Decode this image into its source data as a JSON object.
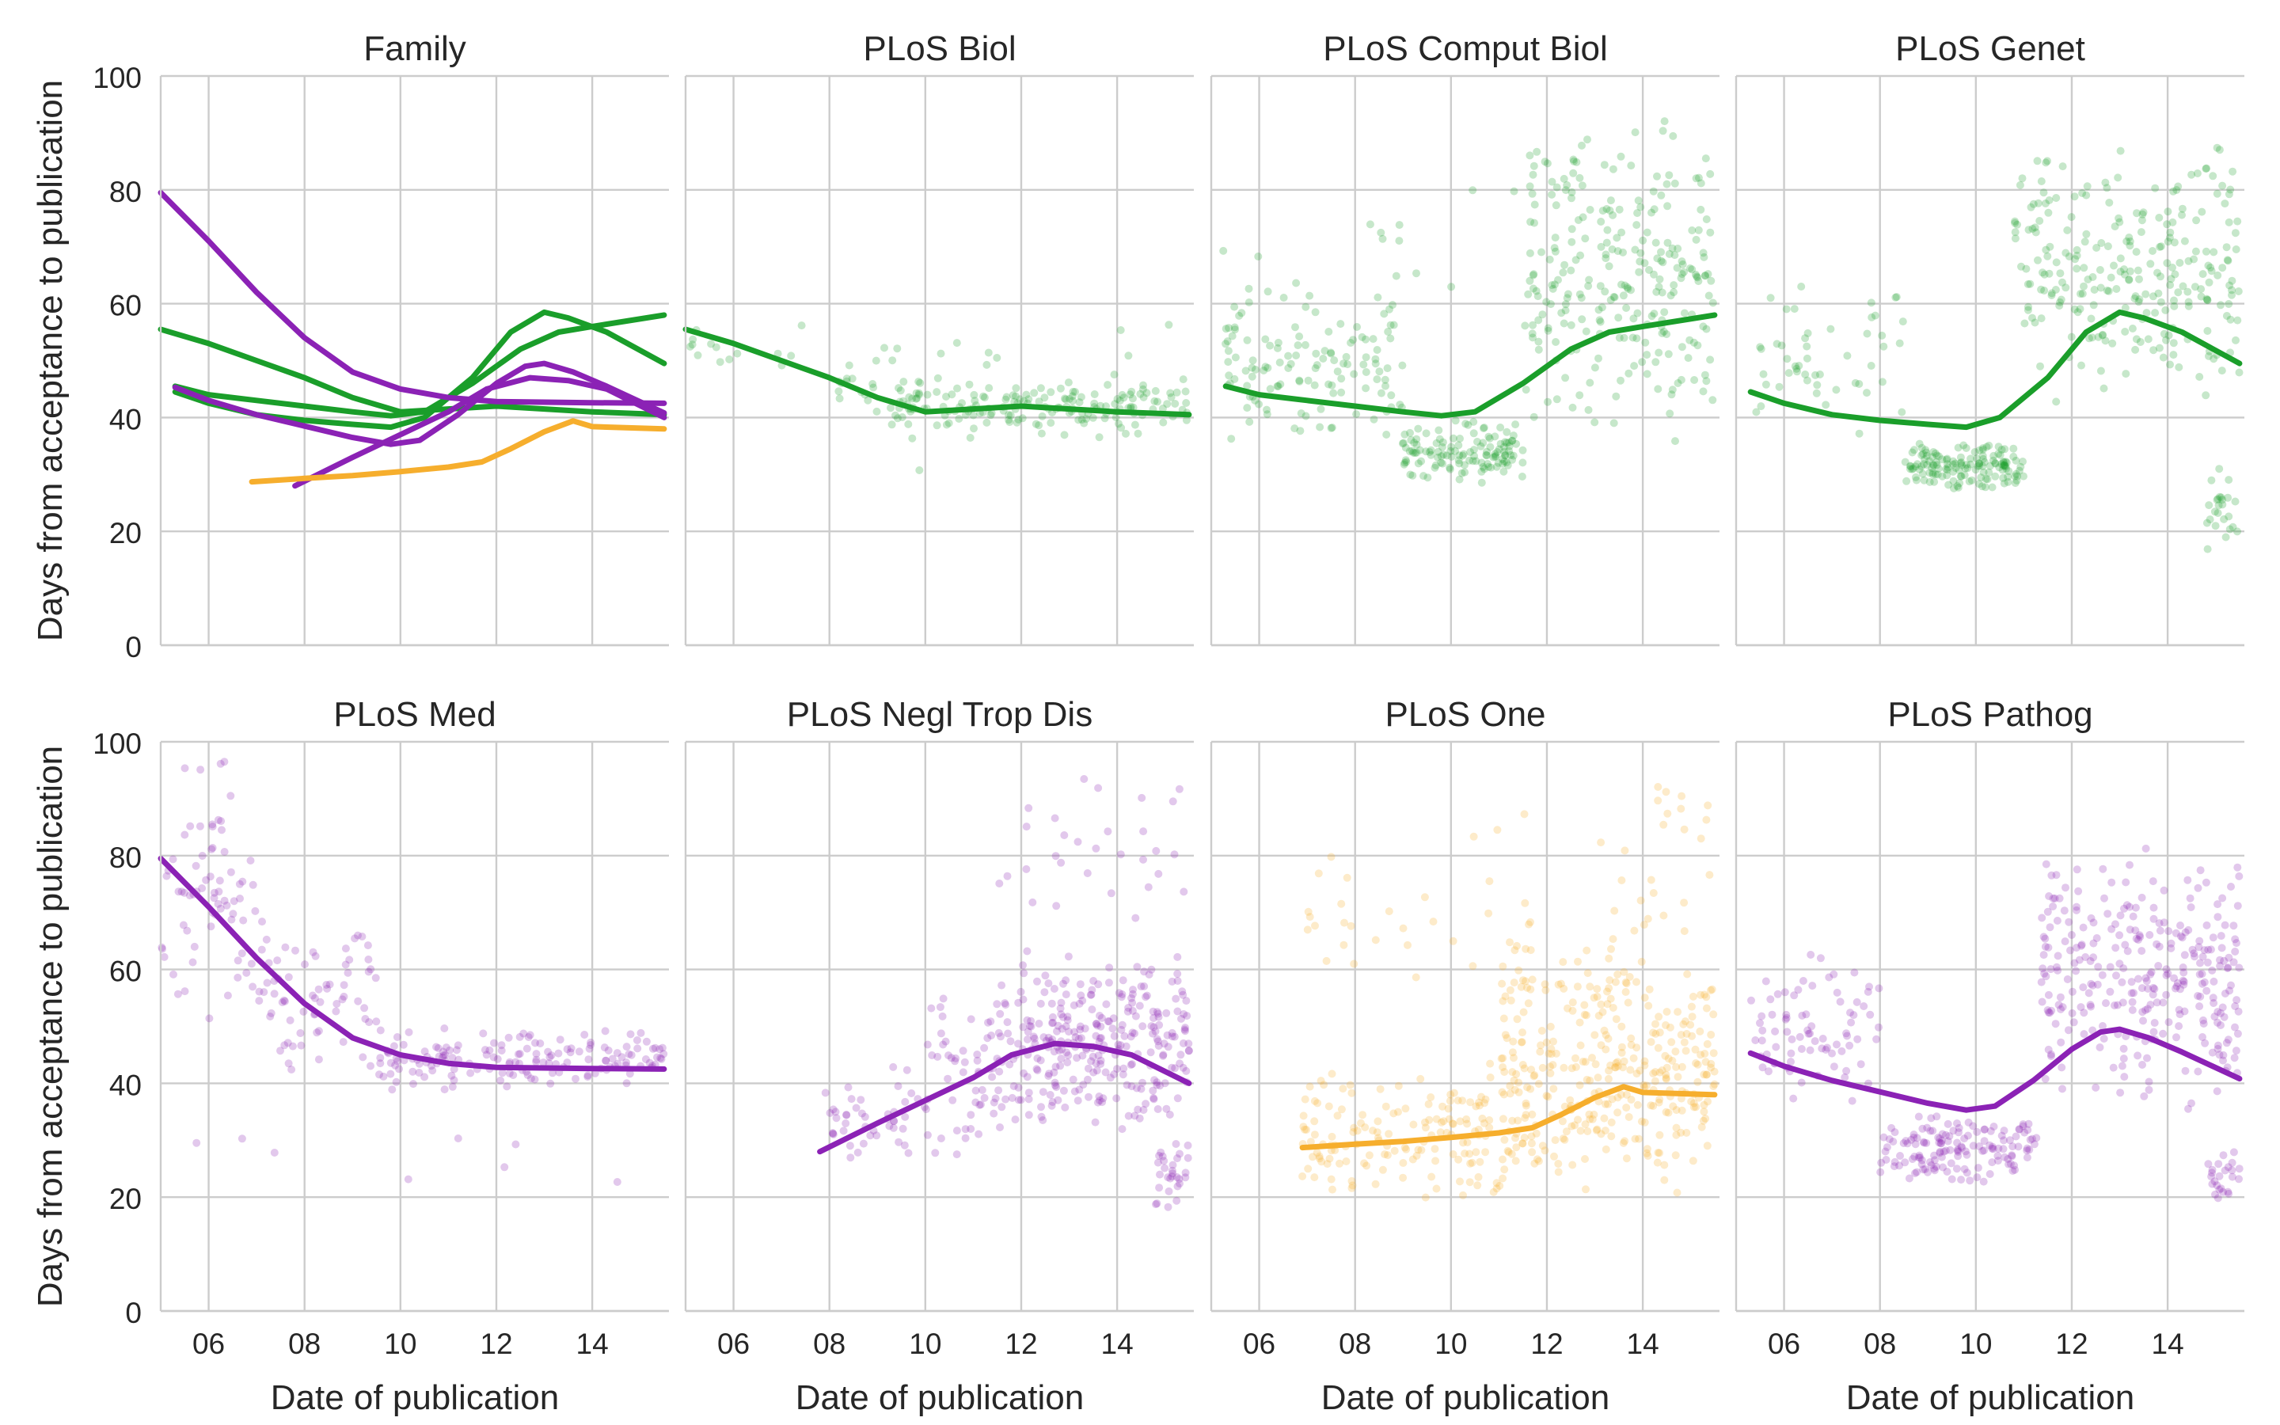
{
  "figure": {
    "shared_ylabel": "Days from acceptance to publication",
    "shared_xlabel": "Date of publication",
    "x_ticks": [
      "06",
      "08",
      "10",
      "12",
      "14"
    ],
    "y_ticks": [
      "0",
      "20",
      "40",
      "60",
      "80",
      "100"
    ],
    "colors": {
      "green": "#1a9e2a",
      "purple": "#8b22b5",
      "orange": "#f6ae2d",
      "grid": "#cccccc"
    }
  },
  "chart_data": [
    {
      "type": "line",
      "title": "Family",
      "xlabel": "",
      "ylabel": "Days from acceptance to publication",
      "xlim": [
        2005.0,
        2015.6
      ],
      "ylim": [
        0,
        100
      ],
      "series": [
        {
          "name": "PLoS Biol",
          "color": "green",
          "x": [
            2005.0,
            2006,
            2007,
            2008,
            2009,
            2010,
            2011,
            2012,
            2013,
            2014,
            2015.5
          ],
          "values": [
            55.5,
            53,
            50,
            47,
            43.5,
            41,
            41.5,
            42,
            41.5,
            41,
            40.5
          ]
        },
        {
          "name": "PLoS Comput Biol",
          "color": "green",
          "x": [
            2005.3,
            2006,
            2007,
            2008,
            2009,
            2009.8,
            2010.5,
            2011.5,
            2012.5,
            2013.3,
            2014,
            2015.5
          ],
          "values": [
            45.5,
            44,
            43,
            42,
            41,
            40.3,
            41,
            46,
            52,
            55,
            56,
            58
          ]
        },
        {
          "name": "PLoS Genet",
          "color": "green",
          "x": [
            2005.3,
            2006,
            2007,
            2008,
            2009,
            2009.8,
            2010.5,
            2011.5,
            2012.3,
            2013,
            2013.5,
            2014.3,
            2015.5
          ],
          "values": [
            44.5,
            42.5,
            40.5,
            39.5,
            38.8,
            38.3,
            40,
            47,
            55,
            58.5,
            57.5,
            55,
            49.5
          ]
        },
        {
          "name": "PLoS Med",
          "color": "purple",
          "x": [
            2005.0,
            2006,
            2007,
            2008,
            2009,
            2010,
            2011,
            2012,
            2013,
            2014,
            2015.5
          ],
          "values": [
            79.5,
            71,
            62,
            54,
            48,
            45,
            43.5,
            42.8,
            42.7,
            42.6,
            42.5
          ]
        },
        {
          "name": "PLoS Negl Trop Dis",
          "color": "purple",
          "x": [
            2007.8,
            2009,
            2010,
            2011,
            2011.8,
            2012.7,
            2013.5,
            2014.3,
            2015.5
          ],
          "values": [
            28,
            33,
            37,
            41,
            45,
            47,
            46.5,
            45,
            40
          ]
        },
        {
          "name": "PLoS Pathog",
          "color": "purple",
          "x": [
            2005.3,
            2006,
            2007,
            2008,
            2009,
            2009.8,
            2010.4,
            2011.2,
            2012,
            2012.6,
            2013,
            2013.6,
            2014.3,
            2015.5
          ],
          "values": [
            45.3,
            43,
            40.5,
            38.5,
            36.5,
            35.3,
            36,
            40.5,
            46,
            49,
            49.5,
            48,
            45.5,
            40.8
          ]
        },
        {
          "name": "PLoS One",
          "color": "orange",
          "x": [
            2006.9,
            2008,
            2009,
            2010,
            2011,
            2011.7,
            2012.3,
            2013,
            2013.6,
            2014,
            2015.5
          ],
          "values": [
            28.7,
            29.3,
            29.8,
            30.5,
            31.3,
            32.2,
            34.5,
            37.5,
            39.4,
            38.4,
            38
          ]
        }
      ]
    },
    {
      "type": "scatter",
      "title": "PLoS Biol",
      "xlabel": "",
      "ylabel": "",
      "xlim": [
        2005.0,
        2015.6
      ],
      "ylim": [
        0,
        100
      ],
      "color": "green",
      "seed": 11,
      "clusters": [
        [
          2005.0,
          2008.0,
          46,
          58,
          14
        ],
        [
          2008.0,
          2009.3,
          40,
          52,
          16
        ],
        [
          2009.3,
          2015.5,
          36,
          47,
          170
        ],
        [
          2009.0,
          2015.5,
          26,
          62,
          24
        ]
      ],
      "trend": {
        "x": [
          2005.0,
          2006,
          2007,
          2008,
          2009,
          2010,
          2011,
          2012,
          2013,
          2014,
          2015.5
        ],
        "values": [
          55.5,
          53,
          50,
          47,
          43.5,
          41,
          41.5,
          42,
          41.5,
          41,
          40.5
        ]
      }
    },
    {
      "type": "scatter",
      "title": "PLoS Comput Biol",
      "xlabel": "",
      "ylabel": "",
      "xlim": [
        2005.0,
        2015.6
      ],
      "ylim": [
        0,
        100
      ],
      "color": "green",
      "seed": 23,
      "clusters": [
        [
          2005.2,
          2009.0,
          34,
          66,
          130
        ],
        [
          2009.0,
          2011.5,
          28,
          40,
          130
        ],
        [
          2011.5,
          2015.5,
          35,
          95,
          260
        ],
        [
          2005.2,
          2011.5,
          55,
          82,
          12
        ]
      ],
      "trend": {
        "x": [
          2005.3,
          2006,
          2007,
          2008,
          2009,
          2009.8,
          2010.5,
          2011.5,
          2012.5,
          2013.3,
          2014,
          2015.5
        ],
        "values": [
          45.5,
          44,
          43,
          42,
          41,
          40.3,
          41,
          46,
          52,
          55,
          56,
          58
        ]
      }
    },
    {
      "type": "scatter",
      "title": "PLoS Genet",
      "xlabel": "",
      "ylabel": "",
      "xlim": [
        2005.0,
        2015.6
      ],
      "ylim": [
        0,
        100
      ],
      "color": "green",
      "seed": 37,
      "clusters": [
        [
          2005.3,
          2008.5,
          36,
          66,
          50
        ],
        [
          2008.5,
          2011.0,
          27,
          36,
          150
        ],
        [
          2010.8,
          2015.5,
          42,
          90,
          260
        ],
        [
          2014.8,
          2015.5,
          16,
          35,
          25
        ]
      ],
      "trend": {
        "x": [
          2005.3,
          2006,
          2007,
          2008,
          2009,
          2009.8,
          2010.5,
          2011.5,
          2012.3,
          2013,
          2013.5,
          2014.3,
          2015.5
        ],
        "values": [
          44.5,
          42.5,
          40.5,
          39.5,
          38.8,
          38.3,
          40,
          47,
          55,
          58.5,
          57.5,
          55,
          49.5
        ]
      }
    },
    {
      "type": "scatter",
      "title": "PLoS Med",
      "xlabel": "Date of publication",
      "ylabel": "Days from acceptance to publication",
      "xlim": [
        2005.0,
        2015.6
      ],
      "ylim": [
        0,
        100
      ],
      "color": "purple",
      "seed": 41,
      "clusters": [
        [
          2005.0,
          2007.0,
          50,
          98,
          70
        ],
        [
          2007.0,
          2009.5,
          40,
          72,
          70
        ],
        [
          2009.5,
          2015.5,
          38,
          50,
          160
        ],
        [
          2005.0,
          2015.5,
          20,
          35,
          8
        ]
      ],
      "trend": {
        "x": [
          2005.0,
          2006,
          2007,
          2008,
          2009,
          2010,
          2011,
          2012,
          2013,
          2014,
          2015.5
        ],
        "values": [
          79.5,
          71,
          62,
          54,
          48,
          45,
          43.5,
          42.8,
          42.7,
          42.6,
          42.5
        ]
      }
    },
    {
      "type": "scatter",
      "title": "PLoS Negl Trop Dis",
      "xlabel": "Date of publication",
      "ylabel": "",
      "xlim": [
        2005.0,
        2015.6
      ],
      "ylim": [
        0,
        100
      ],
      "color": "purple",
      "seed": 53,
      "clusters": [
        [
          2007.9,
          2010.0,
          25,
          45,
          45
        ],
        [
          2010.0,
          2011.5,
          25,
          58,
          55
        ],
        [
          2011.5,
          2015.5,
          30,
          65,
          300
        ],
        [
          2014.8,
          2015.5,
          17,
          32,
          30
        ],
        [
          2011.5,
          2015.5,
          65,
          95,
          30
        ]
      ],
      "trend": {
        "x": [
          2007.8,
          2009,
          2010,
          2011,
          2011.8,
          2012.7,
          2013.5,
          2014.3,
          2015.5
        ],
        "values": [
          28,
          33,
          37,
          41,
          45,
          47,
          46.5,
          45,
          40
        ]
      }
    },
    {
      "type": "scatter",
      "title": "PLoS One",
      "xlabel": "Date of publication",
      "ylabel": "",
      "xlim": [
        2005.0,
        2015.6
      ],
      "ylim": [
        0,
        100
      ],
      "color": "orange",
      "seed": 67,
      "clusters": [
        [
          2006.9,
          2011.0,
          18,
          45,
          150
        ],
        [
          2011.0,
          2015.5,
          20,
          65,
          350
        ],
        [
          2006.9,
          2015.5,
          45,
          90,
          60
        ],
        [
          2013.5,
          2015.5,
          75,
          99,
          10
        ]
      ],
      "trend": {
        "x": [
          2006.9,
          2008,
          2009,
          2010,
          2011,
          2011.7,
          2012.3,
          2013,
          2013.6,
          2014,
          2015.5
        ],
        "values": [
          28.7,
          29.3,
          29.8,
          30.5,
          31.3,
          32.2,
          34.5,
          37.5,
          39.4,
          38.4,
          38
        ]
      }
    },
    {
      "type": "scatter",
      "title": "PLoS Pathog",
      "xlabel": "Date of publication",
      "ylabel": "",
      "xlim": [
        2005.0,
        2015.6
      ],
      "ylim": [
        0,
        100
      ],
      "color": "purple",
      "seed": 79,
      "clusters": [
        [
          2005.3,
          2008.0,
          35,
          66,
          80
        ],
        [
          2008.0,
          2011.3,
          22,
          35,
          150
        ],
        [
          2011.3,
          2015.5,
          35,
          82,
          300
        ],
        [
          2014.8,
          2015.5,
          18,
          30,
          25
        ]
      ],
      "trend": {
        "x": [
          2005.3,
          2006,
          2007,
          2008,
          2009,
          2009.8,
          2010.4,
          2011.2,
          2012,
          2012.6,
          2013,
          2013.6,
          2014.3,
          2015.5
        ],
        "values": [
          45.3,
          43,
          40.5,
          38.5,
          36.5,
          35.3,
          36,
          40.5,
          46,
          49,
          49.5,
          48,
          45.5,
          40.8
        ]
      }
    }
  ]
}
